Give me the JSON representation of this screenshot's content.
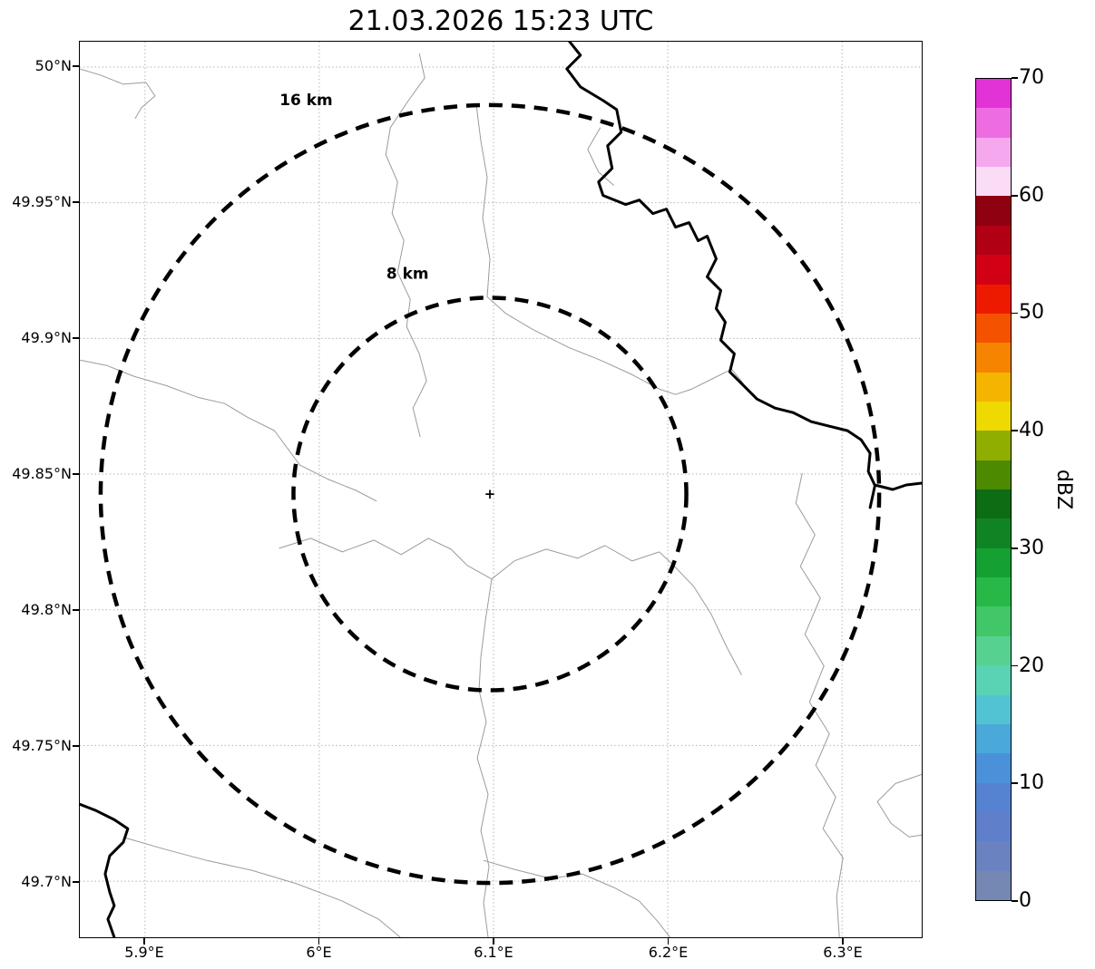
{
  "title": "21.03.2026 15:23 UTC",
  "map": {
    "y_tick_labels": [
      "50°N",
      "49.95°N",
      "49.9°N",
      "49.85°N",
      "49.8°N",
      "49.75°N",
      "49.7°N"
    ],
    "x_tick_labels": [
      "5.9°E",
      "6°E",
      "6.1°E",
      "6.2°E",
      "6.3°E"
    ],
    "range_rings": [
      {
        "label": "16 km",
        "radius_km": 16
      },
      {
        "label": "8 km",
        "radius_km": 8
      }
    ],
    "center_marker": "+"
  },
  "colorbar": {
    "label": "dBZ",
    "min": 0,
    "max": 70,
    "tick_labels": [
      "70",
      "60",
      "50",
      "40",
      "30",
      "20",
      "10",
      "0"
    ],
    "segment_colors_top_to_bottom": [
      "#e233d6",
      "#ee6ce2",
      "#f6a8ef",
      "#fbdcf7",
      "#8f0011",
      "#b10013",
      "#d20015",
      "#ee1a00",
      "#f55200",
      "#f58500",
      "#f5b400",
      "#eed900",
      "#8fae00",
      "#4d8a00",
      "#0d6d14",
      "#108424",
      "#14a132",
      "#27b848",
      "#41c767",
      "#57d18f",
      "#59d3b4",
      "#52c3d3",
      "#4aa9d9",
      "#4b91d9",
      "#5583d2",
      "#5f7fca",
      "#6a82bf",
      "#7588b3"
    ]
  },
  "colors": {
    "range_ring": "#000000",
    "grid": "#b4b4b4",
    "admin_boundary": "#9b9b9b",
    "country_border": "#000000"
  }
}
